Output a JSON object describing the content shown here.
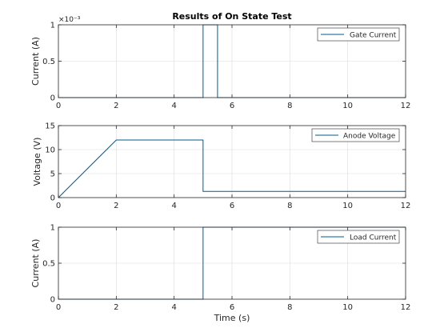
{
  "chart_data": [
    {
      "type": "line",
      "title": "Results of On State Test",
      "xlabel": "",
      "ylabel": "Current (A)",
      "exponent_label": "×10⁻³",
      "xlim": [
        0,
        12
      ],
      "ylim": [
        0,
        1
      ],
      "xticks": [
        0,
        2,
        4,
        6,
        8,
        10,
        12
      ],
      "yticks": [
        0,
        0.5,
        1
      ],
      "ytick_labels": [
        "0",
        "0.5",
        "1"
      ],
      "grid": true,
      "legend_position": "top-right",
      "series": [
        {
          "name": "Gate Current",
          "color": "#005b8c",
          "x": [
            0,
            5,
            5,
            5.5,
            5.5,
            12
          ],
          "y": [
            0,
            0,
            1,
            1,
            0,
            0
          ]
        }
      ]
    },
    {
      "type": "line",
      "title": "",
      "xlabel": "",
      "ylabel": "Voltage (V)",
      "xlim": [
        0,
        12
      ],
      "ylim": [
        0,
        15
      ],
      "xticks": [
        0,
        2,
        4,
        6,
        8,
        10,
        12
      ],
      "yticks": [
        0,
        5,
        10,
        15
      ],
      "ytick_labels": [
        "0",
        "5",
        "10",
        "15"
      ],
      "grid": true,
      "legend_position": "top-right",
      "series": [
        {
          "name": "Anode Voltage",
          "color": "#005b8c",
          "x": [
            0,
            2,
            5,
            5,
            12
          ],
          "y": [
            0,
            12,
            12,
            1.3,
            1.3
          ]
        }
      ]
    },
    {
      "type": "line",
      "title": "",
      "xlabel": "Time (s)",
      "ylabel": "Current (A)",
      "xlim": [
        0,
        12
      ],
      "ylim": [
        0,
        1
      ],
      "xticks": [
        0,
        2,
        4,
        6,
        8,
        10,
        12
      ],
      "yticks": [
        0,
        0.5,
        1
      ],
      "ytick_labels": [
        "0",
        "0.5",
        "1"
      ],
      "grid": true,
      "legend_position": "top-right",
      "series": [
        {
          "name": "Load Current",
          "color": "#005b8c",
          "x": [
            0,
            5,
            5,
            12
          ],
          "y": [
            0,
            0,
            1,
            1
          ]
        }
      ]
    }
  ]
}
